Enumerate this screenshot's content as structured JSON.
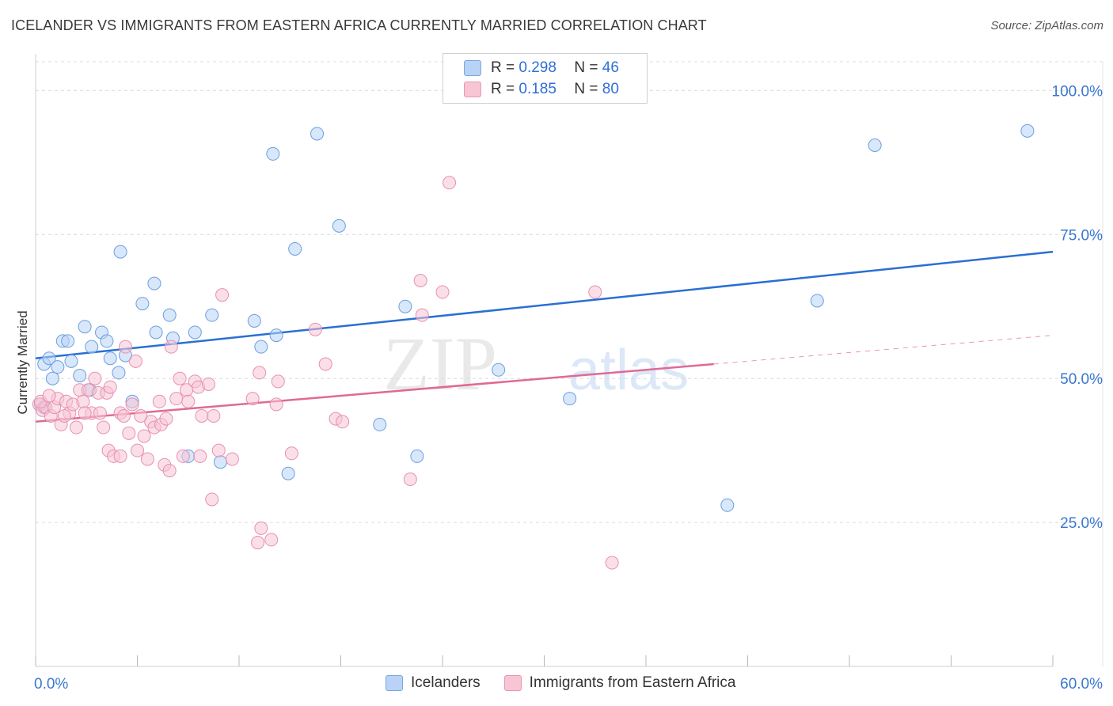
{
  "header": {
    "title": "ICELANDER VS IMMIGRANTS FROM EASTERN AFRICA CURRENTLY MARRIED CORRELATION CHART",
    "source": "Source: ZipAtlas.com"
  },
  "legend_stats": [
    {
      "r_label": "R =",
      "r_value": "0.298",
      "n_label": "N =",
      "n_value": "46"
    },
    {
      "r_label": "R =",
      "r_value": "0.185",
      "n_label": "N =",
      "n_value": "80"
    }
  ],
  "watermark": {
    "zip": "ZIP",
    "atlas": "atlas"
  },
  "colors": {
    "blue_fill": "#b8d3f5",
    "blue_stroke": "#6b9fe0",
    "blue_line": "#2a6fd3",
    "pink_fill": "#f8c5d5",
    "pink_stroke": "#e691ad",
    "pink_line": "#e06a94",
    "axis_text": "#3a78d0",
    "grid": "#dcdcdc"
  },
  "chart_data": {
    "type": "scatter",
    "title": "ICELANDER VS IMMIGRANTS FROM EASTERN AFRICA CURRENTLY MARRIED CORRELATION CHART",
    "xlabel": "",
    "ylabel": "Currently Married",
    "xlim": [
      0,
      60
    ],
    "ylim": [
      0,
      105
    ],
    "x_tick_labels": {
      "left": "0.0%",
      "right": "60.0%"
    },
    "y_ticks": [
      {
        "value": 100,
        "label": "100.0%"
      },
      {
        "value": 75,
        "label": "75.0%"
      },
      {
        "value": 50,
        "label": "50.0%"
      },
      {
        "value": 25,
        "label": "25.0%"
      }
    ],
    "series": [
      {
        "name": "Icelanders",
        "color": "blue",
        "points": [
          [
            0.3,
            45.5
          ],
          [
            0.5,
            52.5
          ],
          [
            0.8,
            53.5
          ],
          [
            1.0,
            50.0
          ],
          [
            1.3,
            52.0
          ],
          [
            1.6,
            56.5
          ],
          [
            1.9,
            56.5
          ],
          [
            2.1,
            53.0
          ],
          [
            2.6,
            50.5
          ],
          [
            2.9,
            59.0
          ],
          [
            3.3,
            55.5
          ],
          [
            3.9,
            58.0
          ],
          [
            4.2,
            56.5
          ],
          [
            4.4,
            53.5
          ],
          [
            4.9,
            51.0
          ],
          [
            5.0,
            72.0
          ],
          [
            5.3,
            54.0
          ],
          [
            5.7,
            46.0
          ],
          [
            3.2,
            48.0
          ],
          [
            6.3,
            63.0
          ],
          [
            7.0,
            66.5
          ],
          [
            7.1,
            58.0
          ],
          [
            7.9,
            61.0
          ],
          [
            8.1,
            57.0
          ],
          [
            9.0,
            36.5
          ],
          [
            9.4,
            58.0
          ],
          [
            10.4,
            61.0
          ],
          [
            10.9,
            35.5
          ],
          [
            12.9,
            60.0
          ],
          [
            13.3,
            55.5
          ],
          [
            14.2,
            57.5
          ],
          [
            14.0,
            89.0
          ],
          [
            14.9,
            33.5
          ],
          [
            15.3,
            72.5
          ],
          [
            16.6,
            92.5
          ],
          [
            17.9,
            76.5
          ],
          [
            20.3,
            42.0
          ],
          [
            21.8,
            62.5
          ],
          [
            22.5,
            36.5
          ],
          [
            27.3,
            51.5
          ],
          [
            31.5,
            46.5
          ],
          [
            40.8,
            28.0
          ],
          [
            46.1,
            63.5
          ],
          [
            49.5,
            90.5
          ],
          [
            58.5,
            93.0
          ],
          [
            0.5,
            45.0
          ]
        ]
      },
      {
        "name": "Immigrants from Eastern Africa",
        "color": "pink",
        "points": [
          [
            0.2,
            45.5
          ],
          [
            0.4,
            44.5
          ],
          [
            0.6,
            45.0
          ],
          [
            0.9,
            43.5
          ],
          [
            1.1,
            45.0
          ],
          [
            1.3,
            46.5
          ],
          [
            1.5,
            42.0
          ],
          [
            1.8,
            46.0
          ],
          [
            2.0,
            44.0
          ],
          [
            2.2,
            45.5
          ],
          [
            2.4,
            41.5
          ],
          [
            2.6,
            48.0
          ],
          [
            2.8,
            46.0
          ],
          [
            3.1,
            48.0
          ],
          [
            3.3,
            44.0
          ],
          [
            3.5,
            50.0
          ],
          [
            3.7,
            47.5
          ],
          [
            3.8,
            44.0
          ],
          [
            4.0,
            41.5
          ],
          [
            4.2,
            47.5
          ],
          [
            4.4,
            48.5
          ],
          [
            4.3,
            37.5
          ],
          [
            4.6,
            36.5
          ],
          [
            5.0,
            36.5
          ],
          [
            5.0,
            44.0
          ],
          [
            5.2,
            43.5
          ],
          [
            5.3,
            55.5
          ],
          [
            5.5,
            40.5
          ],
          [
            5.7,
            45.5
          ],
          [
            5.9,
            53.0
          ],
          [
            6.0,
            37.5
          ],
          [
            6.4,
            40.0
          ],
          [
            6.6,
            36.0
          ],
          [
            6.8,
            42.5
          ],
          [
            7.0,
            41.5
          ],
          [
            7.3,
            46.0
          ],
          [
            7.4,
            42.0
          ],
          [
            7.6,
            35.0
          ],
          [
            7.7,
            43.0
          ],
          [
            7.9,
            34.0
          ],
          [
            8.0,
            55.5
          ],
          [
            8.3,
            46.5
          ],
          [
            8.5,
            50.0
          ],
          [
            8.7,
            36.5
          ],
          [
            8.9,
            48.0
          ],
          [
            9.0,
            46.0
          ],
          [
            9.4,
            49.5
          ],
          [
            9.6,
            48.5
          ],
          [
            9.8,
            43.5
          ],
          [
            10.2,
            49.0
          ],
          [
            10.4,
            29.0
          ],
          [
            10.5,
            43.5
          ],
          [
            10.8,
            37.5
          ],
          [
            11.0,
            64.5
          ],
          [
            11.6,
            36.0
          ],
          [
            12.8,
            46.5
          ],
          [
            13.2,
            51.0
          ],
          [
            13.3,
            24.0
          ],
          [
            13.1,
            21.5
          ],
          [
            13.9,
            22.0
          ],
          [
            14.2,
            45.5
          ],
          [
            14.3,
            49.5
          ],
          [
            15.1,
            37.0
          ],
          [
            16.5,
            58.5
          ],
          [
            17.1,
            52.5
          ],
          [
            17.7,
            43.0
          ],
          [
            18.1,
            42.5
          ],
          [
            22.1,
            32.5
          ],
          [
            22.7,
            67.0
          ],
          [
            22.8,
            61.0
          ],
          [
            24.0,
            65.0
          ],
          [
            24.4,
            84.0
          ],
          [
            33.0,
            65.0
          ],
          [
            34.0,
            18.0
          ],
          [
            0.3,
            46.0
          ],
          [
            1.7,
            43.5
          ],
          [
            2.9,
            44.0
          ],
          [
            6.2,
            43.5
          ],
          [
            9.7,
            36.5
          ],
          [
            0.8,
            47.0
          ]
        ]
      }
    ],
    "trendlines": [
      {
        "series": "Icelanders",
        "from": [
          0,
          53.5
        ],
        "to": [
          60,
          72.0
        ],
        "style": "solid"
      },
      {
        "series": "Immigrants from Eastern Africa",
        "from": [
          0,
          42.5
        ],
        "to": [
          40,
          52.5
        ],
        "style": "solid"
      },
      {
        "series": "Immigrants from Eastern Africa",
        "from": [
          40,
          52.5
        ],
        "to": [
          60,
          57.5
        ],
        "style": "dashed"
      }
    ]
  },
  "bottom_legend": [
    {
      "label": "Icelanders"
    },
    {
      "label": "Immigrants from Eastern Africa"
    }
  ]
}
